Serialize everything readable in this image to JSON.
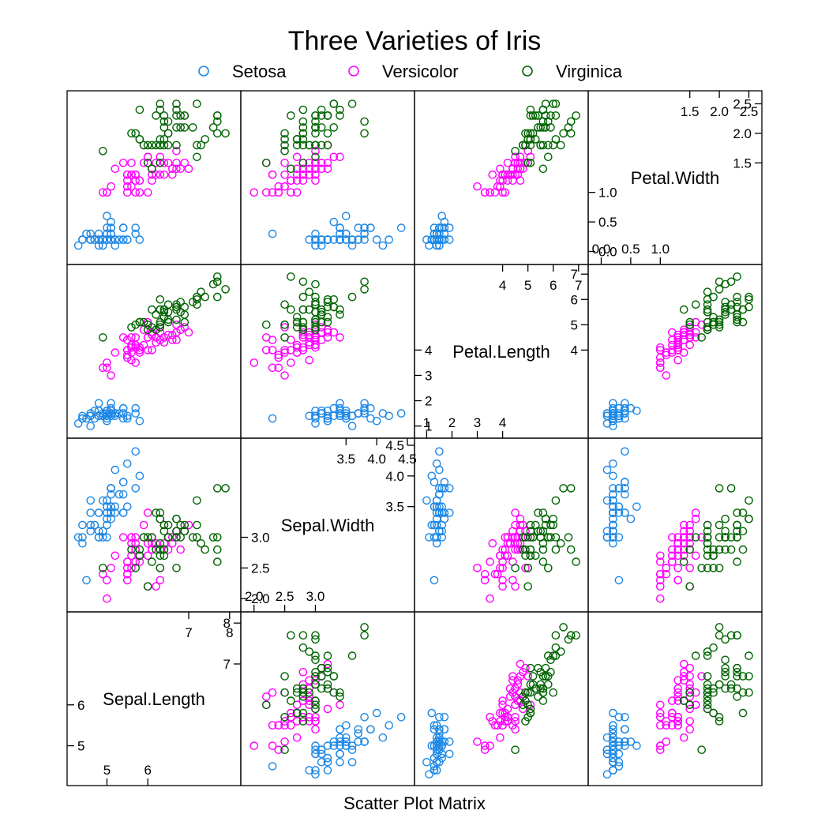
{
  "title": "Three Varieties of Iris",
  "xlabel": "Scatter Plot Matrix",
  "legend": [
    {
      "label": "Setosa",
      "color": "#1e88e5"
    },
    {
      "label": "Versicolor",
      "color": "#ff00ff"
    },
    {
      "label": "Virginica",
      "color": "#006400"
    }
  ],
  "chart_data": {
    "type": "scatter",
    "title": "Three Varieties of Iris",
    "xlabel": "Scatter Plot Matrix",
    "legend_position": "top",
    "grid": false,
    "variables": [
      "Sepal.Length",
      "Sepal.Width",
      "Petal.Length",
      "Petal.Width"
    ],
    "ranges": {
      "Sepal.Length": [
        4.2,
        8.1
      ],
      "Sepal.Width": [
        1.9,
        4.5
      ],
      "Petal.Length": [
        0.8,
        7.1
      ],
      "Petal.Width": [
        -0.1,
        2.6
      ]
    },
    "diagonal_ticks": [
      {
        "var": "Sepal.Length",
        "bottom": [
          "5",
          "6"
        ],
        "top": [
          "7",
          "8"
        ],
        "left": [
          "5",
          "6"
        ],
        "right": [
          "7",
          "8"
        ]
      },
      {
        "var": "Sepal.Width",
        "bottom": [
          "2.0",
          "2.5",
          "3.0"
        ],
        "top": [
          "3.5",
          "4.0",
          "4.5"
        ],
        "left": [
          "2.0",
          "2.5",
          "3.0"
        ],
        "right": [
          "3.5",
          "4.0",
          "4.5"
        ]
      },
      {
        "var": "Petal.Length",
        "bottom": [
          "1",
          "2",
          "3",
          "4"
        ],
        "top": [
          "4",
          "5",
          "6",
          "7"
        ],
        "left": [
          "1",
          "2",
          "3",
          "4"
        ],
        "right": [
          "4",
          "5",
          "6",
          "7"
        ]
      },
      {
        "var": "Petal.Width",
        "bottom": [
          "0.0",
          "0.5",
          "1.0"
        ],
        "top": [
          "1.5",
          "2.0",
          "2.5"
        ],
        "left": [
          "0.0",
          "0.5",
          "1.0"
        ],
        "right": [
          "1.5",
          "2.0",
          "2.5"
        ]
      }
    ],
    "series": [
      {
        "name": "Setosa",
        "color": "#1e88e5",
        "points": [
          [
            5.1,
            3.5,
            1.4,
            0.2
          ],
          [
            4.9,
            3.0,
            1.4,
            0.2
          ],
          [
            4.7,
            3.2,
            1.3,
            0.2
          ],
          [
            4.6,
            3.1,
            1.5,
            0.2
          ],
          [
            5.0,
            3.6,
            1.4,
            0.2
          ],
          [
            5.4,
            3.9,
            1.7,
            0.4
          ],
          [
            4.6,
            3.4,
            1.4,
            0.3
          ],
          [
            5.0,
            3.4,
            1.5,
            0.2
          ],
          [
            4.4,
            2.9,
            1.4,
            0.2
          ],
          [
            4.9,
            3.1,
            1.5,
            0.1
          ],
          [
            5.4,
            3.7,
            1.5,
            0.2
          ],
          [
            4.8,
            3.4,
            1.6,
            0.2
          ],
          [
            4.8,
            3.0,
            1.4,
            0.1
          ],
          [
            4.3,
            3.0,
            1.1,
            0.1
          ],
          [
            5.8,
            4.0,
            1.2,
            0.2
          ],
          [
            5.7,
            4.4,
            1.5,
            0.4
          ],
          [
            5.4,
            3.9,
            1.3,
            0.4
          ],
          [
            5.1,
            3.5,
            1.4,
            0.3
          ],
          [
            5.7,
            3.8,
            1.7,
            0.3
          ],
          [
            5.1,
            3.8,
            1.5,
            0.3
          ],
          [
            5.4,
            3.4,
            1.7,
            0.2
          ],
          [
            5.1,
            3.7,
            1.5,
            0.4
          ],
          [
            4.6,
            3.6,
            1.0,
            0.2
          ],
          [
            5.1,
            3.3,
            1.7,
            0.5
          ],
          [
            4.8,
            3.4,
            1.9,
            0.2
          ],
          [
            5.0,
            3.0,
            1.6,
            0.2
          ],
          [
            5.0,
            3.4,
            1.6,
            0.4
          ],
          [
            5.2,
            3.5,
            1.5,
            0.2
          ],
          [
            5.2,
            3.4,
            1.4,
            0.2
          ],
          [
            4.7,
            3.2,
            1.6,
            0.2
          ],
          [
            4.8,
            3.1,
            1.6,
            0.2
          ],
          [
            5.4,
            3.4,
            1.5,
            0.4
          ],
          [
            5.2,
            4.1,
            1.5,
            0.1
          ],
          [
            5.5,
            4.2,
            1.4,
            0.2
          ],
          [
            4.9,
            3.1,
            1.5,
            0.2
          ],
          [
            5.0,
            3.2,
            1.2,
            0.2
          ],
          [
            5.5,
            3.5,
            1.3,
            0.2
          ],
          [
            4.9,
            3.6,
            1.4,
            0.1
          ],
          [
            4.4,
            3.0,
            1.3,
            0.2
          ],
          [
            5.1,
            3.4,
            1.5,
            0.2
          ],
          [
            5.0,
            3.5,
            1.3,
            0.3
          ],
          [
            4.5,
            2.3,
            1.3,
            0.3
          ],
          [
            4.4,
            3.2,
            1.3,
            0.2
          ],
          [
            5.0,
            3.5,
            1.6,
            0.6
          ],
          [
            5.1,
            3.8,
            1.9,
            0.4
          ],
          [
            4.8,
            3.0,
            1.4,
            0.3
          ],
          [
            5.1,
            3.8,
            1.6,
            0.2
          ],
          [
            4.6,
            3.2,
            1.4,
            0.2
          ],
          [
            5.3,
            3.7,
            1.5,
            0.2
          ],
          [
            5.0,
            3.3,
            1.4,
            0.2
          ]
        ]
      },
      {
        "name": "Versicolor",
        "color": "#ff00ff",
        "points": [
          [
            7.0,
            3.2,
            4.7,
            1.4
          ],
          [
            6.4,
            3.2,
            4.5,
            1.5
          ],
          [
            6.9,
            3.1,
            4.9,
            1.5
          ],
          [
            5.5,
            2.3,
            4.0,
            1.3
          ],
          [
            6.5,
            2.8,
            4.6,
            1.5
          ],
          [
            5.7,
            2.8,
            4.5,
            1.3
          ],
          [
            6.3,
            3.3,
            4.7,
            1.6
          ],
          [
            4.9,
            2.4,
            3.3,
            1.0
          ],
          [
            6.6,
            2.9,
            4.6,
            1.3
          ],
          [
            5.2,
            2.7,
            3.9,
            1.4
          ],
          [
            5.0,
            2.0,
            3.5,
            1.0
          ],
          [
            5.9,
            3.0,
            4.2,
            1.5
          ],
          [
            6.0,
            2.2,
            4.0,
            1.0
          ],
          [
            6.1,
            2.9,
            4.7,
            1.4
          ],
          [
            5.6,
            2.9,
            3.6,
            1.3
          ],
          [
            6.7,
            3.1,
            4.4,
            1.4
          ],
          [
            5.6,
            3.0,
            4.5,
            1.5
          ],
          [
            5.8,
            2.7,
            4.1,
            1.0
          ],
          [
            6.2,
            2.2,
            4.5,
            1.5
          ],
          [
            5.6,
            2.5,
            3.9,
            1.1
          ],
          [
            5.9,
            3.2,
            4.8,
            1.8
          ],
          [
            6.1,
            2.8,
            4.0,
            1.3
          ],
          [
            6.3,
            2.5,
            4.9,
            1.5
          ],
          [
            6.1,
            2.8,
            4.7,
            1.2
          ],
          [
            6.4,
            2.9,
            4.3,
            1.3
          ],
          [
            6.6,
            3.0,
            4.4,
            1.4
          ],
          [
            6.8,
            2.8,
            4.8,
            1.4
          ],
          [
            6.7,
            3.0,
            5.0,
            1.7
          ],
          [
            6.0,
            2.9,
            4.5,
            1.5
          ],
          [
            5.7,
            2.6,
            3.5,
            1.0
          ],
          [
            5.5,
            2.4,
            3.8,
            1.1
          ],
          [
            5.5,
            2.4,
            3.7,
            1.0
          ],
          [
            5.8,
            2.7,
            3.9,
            1.2
          ],
          [
            6.0,
            2.7,
            5.1,
            1.6
          ],
          [
            5.4,
            3.0,
            4.5,
            1.5
          ],
          [
            6.0,
            3.4,
            4.5,
            1.6
          ],
          [
            6.7,
            3.1,
            4.7,
            1.5
          ],
          [
            6.3,
            2.3,
            4.4,
            1.3
          ],
          [
            5.6,
            3.0,
            4.1,
            1.3
          ],
          [
            5.5,
            2.5,
            4.0,
            1.3
          ],
          [
            5.5,
            2.6,
            4.4,
            1.2
          ],
          [
            6.1,
            3.0,
            4.6,
            1.4
          ],
          [
            5.8,
            2.6,
            4.0,
            1.2
          ],
          [
            5.0,
            2.3,
            3.3,
            1.0
          ],
          [
            5.6,
            2.7,
            4.2,
            1.3
          ],
          [
            5.7,
            3.0,
            4.2,
            1.2
          ],
          [
            5.7,
            2.9,
            4.2,
            1.3
          ],
          [
            6.2,
            2.9,
            4.3,
            1.3
          ],
          [
            5.1,
            2.5,
            3.0,
            1.1
          ],
          [
            5.7,
            2.8,
            4.1,
            1.3
          ]
        ]
      },
      {
        "name": "Virginica",
        "color": "#006400",
        "points": [
          [
            6.3,
            3.3,
            6.0,
            2.5
          ],
          [
            5.8,
            2.7,
            5.1,
            1.9
          ],
          [
            7.1,
            3.0,
            5.9,
            2.1
          ],
          [
            6.3,
            2.9,
            5.6,
            1.8
          ],
          [
            6.5,
            3.0,
            5.8,
            2.2
          ],
          [
            7.6,
            3.0,
            6.6,
            2.1
          ],
          [
            4.9,
            2.5,
            4.5,
            1.7
          ],
          [
            7.3,
            2.9,
            6.3,
            1.8
          ],
          [
            6.7,
            2.5,
            5.8,
            1.8
          ],
          [
            7.2,
            3.6,
            6.1,
            2.5
          ],
          [
            6.5,
            3.2,
            5.1,
            2.0
          ],
          [
            6.4,
            2.7,
            5.3,
            1.9
          ],
          [
            6.8,
            3.0,
            5.5,
            2.1
          ],
          [
            5.7,
            2.5,
            5.0,
            2.0
          ],
          [
            5.8,
            2.8,
            5.1,
            2.4
          ],
          [
            6.4,
            3.2,
            5.3,
            2.3
          ],
          [
            6.5,
            3.0,
            5.5,
            1.8
          ],
          [
            7.7,
            3.8,
            6.7,
            2.2
          ],
          [
            7.7,
            2.6,
            6.9,
            2.3
          ],
          [
            6.0,
            2.2,
            5.0,
            1.5
          ],
          [
            6.9,
            3.2,
            5.7,
            2.3
          ],
          [
            5.6,
            2.8,
            4.9,
            2.0
          ],
          [
            7.7,
            2.8,
            6.7,
            2.0
          ],
          [
            6.3,
            2.7,
            4.9,
            1.8
          ],
          [
            6.7,
            3.3,
            5.7,
            2.1
          ],
          [
            7.2,
            3.2,
            6.0,
            1.8
          ],
          [
            6.2,
            2.8,
            4.8,
            1.8
          ],
          [
            6.1,
            3.0,
            4.9,
            1.8
          ],
          [
            6.4,
            2.8,
            5.6,
            2.1
          ],
          [
            7.2,
            3.0,
            5.8,
            1.6
          ],
          [
            7.4,
            2.8,
            6.1,
            1.9
          ],
          [
            7.9,
            3.8,
            6.4,
            2.0
          ],
          [
            6.4,
            2.8,
            5.6,
            2.2
          ],
          [
            6.3,
            2.8,
            5.1,
            1.5
          ],
          [
            6.1,
            2.6,
            5.6,
            1.4
          ],
          [
            7.7,
            3.0,
            6.1,
            2.3
          ],
          [
            6.3,
            3.4,
            5.6,
            2.4
          ],
          [
            6.4,
            3.1,
            5.5,
            1.8
          ],
          [
            6.0,
            3.0,
            4.8,
            1.8
          ],
          [
            6.9,
            3.1,
            5.4,
            2.1
          ],
          [
            6.7,
            3.1,
            5.6,
            2.4
          ],
          [
            6.9,
            3.1,
            5.1,
            2.3
          ],
          [
            5.8,
            2.7,
            5.1,
            1.9
          ],
          [
            6.8,
            3.2,
            5.9,
            2.3
          ],
          [
            6.7,
            3.3,
            5.7,
            2.5
          ],
          [
            6.7,
            3.0,
            5.2,
            2.3
          ],
          [
            6.3,
            2.5,
            5.0,
            1.9
          ],
          [
            6.5,
            3.0,
            5.2,
            2.0
          ],
          [
            6.2,
            3.4,
            5.4,
            2.3
          ],
          [
            5.9,
            3.0,
            5.1,
            1.8
          ]
        ]
      }
    ]
  }
}
